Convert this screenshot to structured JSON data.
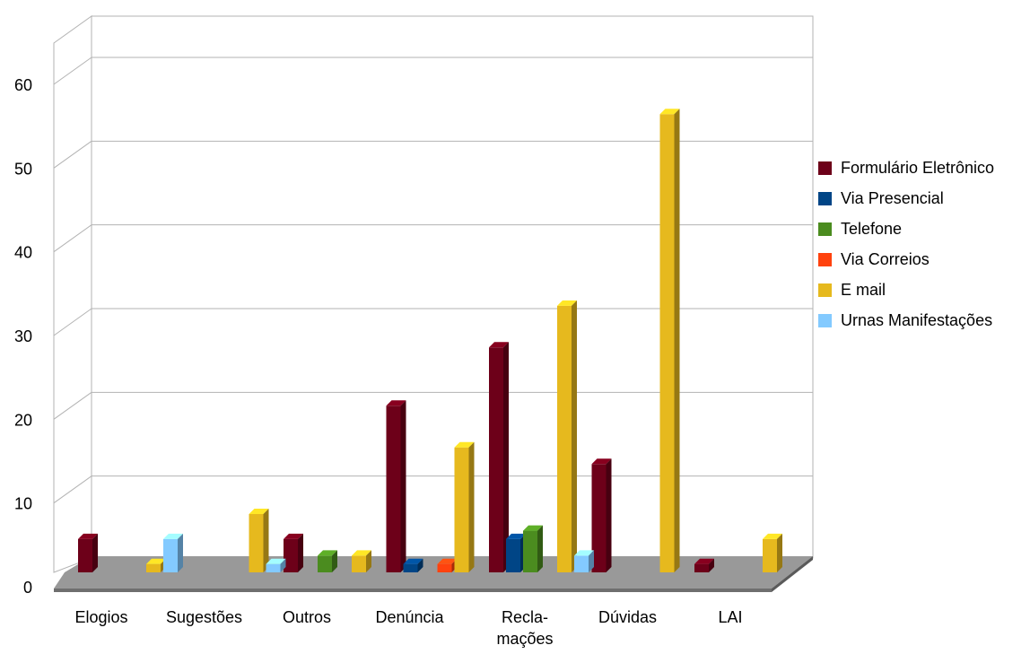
{
  "chart_data": {
    "type": "bar",
    "title": "",
    "xlabel": "",
    "ylabel": "",
    "ylim": [
      0,
      60
    ],
    "yticks": [
      "0",
      "10",
      "20",
      "30",
      "40",
      "50",
      "60"
    ],
    "grid": true,
    "legend_position": "right",
    "three_d": true,
    "categories": [
      "Elogios",
      "Sugestões",
      "Outros",
      "Denúncia",
      "Reclamações",
      "Dúvidas",
      "LAI"
    ],
    "category_labels": [
      [
        "Elogios"
      ],
      [
        "Sugestões"
      ],
      [
        "Outros"
      ],
      [
        "Denúncia"
      ],
      [
        "Recla-",
        "mações"
      ],
      [
        "Dúvidas"
      ],
      [
        "LAI"
      ]
    ],
    "series": [
      {
        "name": "Formulário Eletrônico",
        "color": "#6d0019",
        "values": [
          4,
          0,
          4,
          20,
          27,
          13,
          1
        ]
      },
      {
        "name": "Via Presencial",
        "color": "#004586",
        "values": [
          0,
          0,
          0,
          1,
          4,
          0,
          0
        ]
      },
      {
        "name": "Telefone",
        "color": "#4b8c1f",
        "values": [
          0,
          0,
          2,
          0,
          5,
          0,
          0
        ]
      },
      {
        "name": "Via Correios",
        "color": "#ff420e",
        "values": [
          0,
          0,
          0,
          1,
          0,
          0,
          0
        ]
      },
      {
        "name": "E mail",
        "color": "#e6b91e",
        "values": [
          1,
          7,
          2,
          15,
          32,
          55,
          4
        ]
      },
      {
        "name": "Urnas Manifestações",
        "color": "#83caff",
        "values": [
          4,
          1,
          0,
          0,
          2,
          0,
          0
        ]
      }
    ]
  }
}
